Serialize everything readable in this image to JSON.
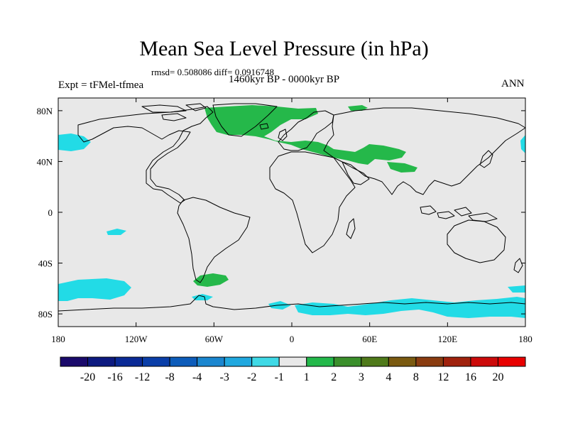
{
  "title": "Mean Sea Level Pressure (in hPa)",
  "stats_text": "rmsd= 0.508086 diff= 0.0916748",
  "period": "1460kyr BP - 0000kyr BP",
  "experiment": "Expt = tFMel-tfmea",
  "season": "ANN",
  "lat_labels": [
    "80N",
    "40N",
    "0",
    "40S",
    "80S"
  ],
  "lon_labels": [
    "180",
    "120W",
    "60W",
    "0",
    "60E",
    "120E",
    "180"
  ],
  "colorbar": {
    "labels": [
      "-20",
      "-16",
      "-12",
      "-8",
      "-4",
      "-3",
      "-2",
      "-1",
      "1",
      "2",
      "3",
      "4",
      "8",
      "12",
      "16",
      "20"
    ],
    "colors": [
      "#1a0a6b",
      "#0d1a80",
      "#0a2a96",
      "#0a3ea8",
      "#0d5cba",
      "#1a86cf",
      "#20a8df",
      "#3fd9e6",
      "#e8e8e8",
      "#23b84a",
      "#3a8f2b",
      "#4f7a1a",
      "#7a5a10",
      "#8a3c10",
      "#a0220d",
      "#cc0a0a",
      "#e80000"
    ]
  },
  "colors": {
    "land_bg": "#e8e8e8",
    "positive": "#25b84a",
    "negative": "#22dbe6"
  }
}
